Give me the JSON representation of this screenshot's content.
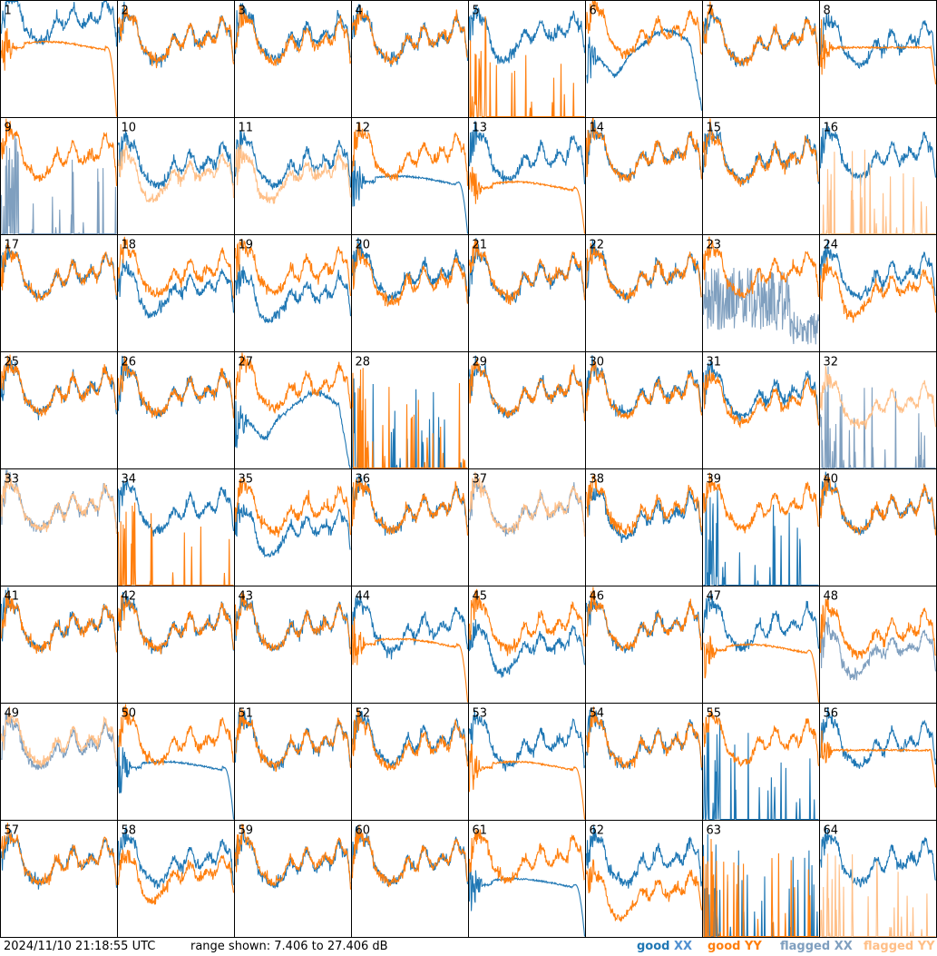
{
  "footer": {
    "timestamp": "2024/11/10 21:18:55 UTC",
    "range": "range shown: 7.406 to 27.406 dB",
    "legend_good_xx_word": "good",
    "legend_good_xx_pol": "XX",
    "legend_good_yy_word": "good",
    "legend_good_yy_pol": "YY",
    "legend_flagged_xx_word": "flagged",
    "legend_flagged_xx_pol": "XX",
    "legend_flagged_yy_word": "flagged",
    "legend_flagged_yy_pol": "YY"
  },
  "colors": {
    "good_xx": "#1f77b4",
    "good_yy": "#ff7f0e",
    "flagged_xx": "#7f9fbf",
    "flagged_yy": "#ffbf87",
    "frame": "#000000"
  },
  "chart_data": {
    "type": "line",
    "layout": "small-multiples 8x8",
    "range_db": [
      7.406,
      27.406
    ],
    "legend": [
      "good XX",
      "good YY",
      "flagged XX",
      "flagged YY"
    ],
    "legend_placement": "bottom-right",
    "panels": [
      {
        "id": "1",
        "xx": "good",
        "yy": "good",
        "xx_shape": "normal",
        "yy_shape": "flat_drop",
        "level_xx": 0.78,
        "level_yy": 0.6
      },
      {
        "id": "2",
        "xx": "good",
        "yy": "good",
        "xx_shape": "normal",
        "yy_shape": "normal",
        "level_xx": 0.62,
        "level_yy": 0.62
      },
      {
        "id": "3",
        "xx": "good",
        "yy": "good",
        "xx_shape": "normal",
        "yy_shape": "normal",
        "level_xx": 0.64,
        "level_yy": 0.6
      },
      {
        "id": "4",
        "xx": "good",
        "yy": "good",
        "xx_shape": "normal",
        "yy_shape": "normal",
        "level_xx": 0.62,
        "level_yy": 0.62
      },
      {
        "id": "5",
        "xx": "good",
        "yy": "good",
        "xx_shape": "dip",
        "yy_shape": "spikes_low",
        "level_xx": 0.68,
        "level_yy": 0.0
      },
      {
        "id": "6",
        "xx": "good",
        "yy": "good",
        "xx_shape": "bigdip",
        "yy_shape": "normal",
        "level_xx": 0.5,
        "level_yy": 0.68
      },
      {
        "id": "7",
        "xx": "good",
        "yy": "good",
        "xx_shape": "normal",
        "yy_shape": "normal",
        "level_xx": 0.6,
        "level_yy": 0.6
      },
      {
        "id": "8",
        "xx": "good",
        "yy": "good",
        "xx_shape": "normal",
        "yy_shape": "flat",
        "level_xx": 0.58,
        "level_yy": 0.6
      },
      {
        "id": "9",
        "xx": "flagged",
        "yy": "good",
        "xx_shape": "spikes_low",
        "yy_shape": "normal",
        "level_xx": 0.0,
        "level_yy": 0.62
      },
      {
        "id": "10",
        "xx": "good",
        "yy": "flagged",
        "xx_shape": "normal",
        "yy_shape": "dip",
        "level_xx": 0.55,
        "level_yy": 0.48
      },
      {
        "id": "11",
        "xx": "good",
        "yy": "flagged",
        "xx_shape": "normal",
        "yy_shape": "dip",
        "level_xx": 0.55,
        "level_yy": 0.48
      },
      {
        "id": "12",
        "xx": "good",
        "yy": "good",
        "xx_shape": "flat_drop",
        "yy_shape": "normal",
        "level_xx": 0.45,
        "level_yy": 0.62
      },
      {
        "id": "13",
        "xx": "good",
        "yy": "good",
        "xx_shape": "normal",
        "yy_shape": "flat_drop",
        "level_xx": 0.6,
        "level_yy": 0.4
      },
      {
        "id": "14",
        "xx": "good",
        "yy": "good",
        "xx_shape": "normal",
        "yy_shape": "normal",
        "level_xx": 0.62,
        "level_yy": 0.62
      },
      {
        "id": "15",
        "xx": "good",
        "yy": "good",
        "xx_shape": "normal",
        "yy_shape": "normal",
        "level_xx": 0.6,
        "level_yy": 0.58
      },
      {
        "id": "16",
        "xx": "good",
        "yy": "flagged",
        "xx_shape": "normal",
        "yy_shape": "spikes_low",
        "level_xx": 0.62,
        "level_yy": 0.0
      },
      {
        "id": "17",
        "xx": "good",
        "yy": "good",
        "xx_shape": "normal",
        "yy_shape": "normal",
        "level_xx": 0.6,
        "level_yy": 0.6
      },
      {
        "id": "18",
        "xx": "good",
        "yy": "good",
        "xx_shape": "dip",
        "yy_shape": "normal",
        "level_xx": 0.5,
        "level_yy": 0.62
      },
      {
        "id": "19",
        "xx": "good",
        "yy": "good",
        "xx_shape": "dip",
        "yy_shape": "normal",
        "level_xx": 0.45,
        "level_yy": 0.64
      },
      {
        "id": "20",
        "xx": "good",
        "yy": "good",
        "xx_shape": "normal",
        "yy_shape": "normal",
        "level_xx": 0.6,
        "level_yy": 0.55
      },
      {
        "id": "21",
        "xx": "good",
        "yy": "good",
        "xx_shape": "normal",
        "yy_shape": "normal",
        "level_xx": 0.58,
        "level_yy": 0.6
      },
      {
        "id": "22",
        "xx": "good",
        "yy": "good",
        "xx_shape": "normal",
        "yy_shape": "normal",
        "level_xx": 0.6,
        "level_yy": 0.6
      },
      {
        "id": "23",
        "xx": "flagged",
        "yy": "good",
        "xx_shape": "noise_mid",
        "yy_shape": "normal",
        "level_xx": 0.3,
        "level_yy": 0.62
      },
      {
        "id": "24",
        "xx": "good",
        "yy": "good",
        "xx_shape": "normal",
        "yy_shape": "dip",
        "level_xx": 0.6,
        "level_yy": 0.5
      },
      {
        "id": "25",
        "xx": "good",
        "yy": "good",
        "xx_shape": "normal",
        "yy_shape": "normal",
        "level_xx": 0.62,
        "level_yy": 0.62
      },
      {
        "id": "26",
        "xx": "good",
        "yy": "good",
        "xx_shape": "normal",
        "yy_shape": "normal",
        "level_xx": 0.6,
        "level_yy": 0.6
      },
      {
        "id": "27",
        "xx": "good",
        "yy": "good",
        "xx_shape": "bigdip",
        "yy_shape": "normal",
        "level_xx": 0.4,
        "level_yy": 0.65
      },
      {
        "id": "28",
        "xx": "good",
        "yy": "good",
        "xx_shape": "spikes_low",
        "yy_shape": "spikes_low",
        "level_xx": 0.0,
        "level_yy": 0.0
      },
      {
        "id": "29",
        "xx": "good",
        "yy": "good",
        "xx_shape": "normal",
        "yy_shape": "normal",
        "level_xx": 0.6,
        "level_yy": 0.6
      },
      {
        "id": "30",
        "xx": "good",
        "yy": "good",
        "xx_shape": "normal",
        "yy_shape": "normal",
        "level_xx": 0.6,
        "level_yy": 0.58
      },
      {
        "id": "31",
        "xx": "good",
        "yy": "good",
        "xx_shape": "normal",
        "yy_shape": "normal",
        "level_xx": 0.58,
        "level_yy": 0.52
      },
      {
        "id": "32",
        "xx": "flagged",
        "yy": "flagged",
        "xx_shape": "spikes_low",
        "yy_shape": "normal",
        "level_xx": 0.0,
        "level_yy": 0.5
      },
      {
        "id": "33",
        "xx": "flagged",
        "yy": "flagged",
        "xx_shape": "normal",
        "yy_shape": "normal",
        "level_xx": 0.62,
        "level_yy": 0.62
      },
      {
        "id": "34",
        "xx": "good",
        "yy": "good",
        "xx_shape": "normal",
        "yy_shape": "spikes_low",
        "level_xx": 0.6,
        "level_yy": 0.0
      },
      {
        "id": "35",
        "xx": "good",
        "yy": "good",
        "xx_shape": "dip",
        "yy_shape": "normal",
        "level_xx": 0.45,
        "level_yy": 0.6
      },
      {
        "id": "36",
        "xx": "good",
        "yy": "good",
        "xx_shape": "normal",
        "yy_shape": "normal",
        "level_xx": 0.6,
        "level_yy": 0.6
      },
      {
        "id": "37",
        "xx": "flagged",
        "yy": "flagged",
        "xx_shape": "normal",
        "yy_shape": "normal",
        "level_xx": 0.6,
        "level_yy": 0.6
      },
      {
        "id": "38",
        "xx": "good",
        "yy": "good",
        "xx_shape": "normal",
        "yy_shape": "normal",
        "level_xx": 0.55,
        "level_yy": 0.6
      },
      {
        "id": "39",
        "xx": "good",
        "yy": "good",
        "xx_shape": "spikes_low",
        "yy_shape": "normal",
        "level_xx": 0.0,
        "level_yy": 0.62
      },
      {
        "id": "40",
        "xx": "good",
        "yy": "good",
        "xx_shape": "normal",
        "yy_shape": "normal",
        "level_xx": 0.6,
        "level_yy": 0.6
      },
      {
        "id": "41",
        "xx": "good",
        "yy": "good",
        "xx_shape": "normal",
        "yy_shape": "normal",
        "level_xx": 0.6,
        "level_yy": 0.6
      },
      {
        "id": "42",
        "xx": "good",
        "yy": "good",
        "xx_shape": "normal",
        "yy_shape": "normal",
        "level_xx": 0.6,
        "level_yy": 0.6
      },
      {
        "id": "43",
        "xx": "good",
        "yy": "good",
        "xx_shape": "normal",
        "yy_shape": "normal",
        "level_xx": 0.6,
        "level_yy": 0.6
      },
      {
        "id": "44",
        "xx": "good",
        "yy": "good",
        "xx_shape": "normal",
        "yy_shape": "flat_drop",
        "level_xx": 0.58,
        "level_yy": 0.5
      },
      {
        "id": "45",
        "xx": "good",
        "yy": "good",
        "xx_shape": "dip",
        "yy_shape": "normal",
        "level_xx": 0.45,
        "level_yy": 0.6
      },
      {
        "id": "46",
        "xx": "good",
        "yy": "good",
        "xx_shape": "normal",
        "yy_shape": "normal",
        "level_xx": 0.6,
        "level_yy": 0.6
      },
      {
        "id": "47",
        "xx": "good",
        "yy": "good",
        "xx_shape": "normal",
        "yy_shape": "flat_drop",
        "level_xx": 0.6,
        "level_yy": 0.45
      },
      {
        "id": "48",
        "xx": "flagged",
        "yy": "good",
        "xx_shape": "dip",
        "yy_shape": "normal",
        "level_xx": 0.42,
        "level_yy": 0.55
      },
      {
        "id": "49",
        "xx": "flagged",
        "yy": "flagged",
        "xx_shape": "normal",
        "yy_shape": "normal",
        "level_xx": 0.58,
        "level_yy": 0.62
      },
      {
        "id": "50",
        "xx": "good",
        "yy": "good",
        "xx_shape": "flat_drop",
        "yy_shape": "normal",
        "level_xx": 0.45,
        "level_yy": 0.62
      },
      {
        "id": "51",
        "xx": "good",
        "yy": "good",
        "xx_shape": "normal",
        "yy_shape": "normal",
        "level_xx": 0.6,
        "level_yy": 0.6
      },
      {
        "id": "52",
        "xx": "good",
        "yy": "good",
        "xx_shape": "normal",
        "yy_shape": "normal",
        "level_xx": 0.62,
        "level_yy": 0.58
      },
      {
        "id": "53",
        "xx": "good",
        "yy": "good",
        "xx_shape": "normal",
        "yy_shape": "flat_drop",
        "level_xx": 0.6,
        "level_yy": 0.45
      },
      {
        "id": "54",
        "xx": "good",
        "yy": "good",
        "xx_shape": "normal",
        "yy_shape": "normal",
        "level_xx": 0.6,
        "level_yy": 0.6
      },
      {
        "id": "55",
        "xx": "good",
        "yy": "good",
        "xx_shape": "spikes_low",
        "yy_shape": "normal",
        "level_xx": 0.0,
        "level_yy": 0.62
      },
      {
        "id": "56",
        "xx": "good",
        "yy": "good",
        "xx_shape": "normal",
        "yy_shape": "flat",
        "level_xx": 0.6,
        "level_yy": 0.6
      },
      {
        "id": "57",
        "xx": "good",
        "yy": "good",
        "xx_shape": "normal",
        "yy_shape": "normal",
        "level_xx": 0.6,
        "level_yy": 0.6
      },
      {
        "id": "58",
        "xx": "good",
        "yy": "good",
        "xx_shape": "normal",
        "yy_shape": "dip",
        "level_xx": 0.6,
        "level_yy": 0.5
      },
      {
        "id": "59",
        "xx": "good",
        "yy": "good",
        "xx_shape": "normal",
        "yy_shape": "normal",
        "level_xx": 0.58,
        "level_yy": 0.6
      },
      {
        "id": "60",
        "xx": "good",
        "yy": "good",
        "xx_shape": "normal",
        "yy_shape": "normal",
        "level_xx": 0.6,
        "level_yy": 0.6
      },
      {
        "id": "61",
        "xx": "good",
        "yy": "good",
        "xx_shape": "flat_drop",
        "yy_shape": "normal",
        "level_xx": 0.45,
        "level_yy": 0.62
      },
      {
        "id": "62",
        "xx": "good",
        "yy": "good",
        "xx_shape": "normal",
        "yy_shape": "dip",
        "level_xx": 0.6,
        "level_yy": 0.35
      },
      {
        "id": "63",
        "xx": "good",
        "yy": "good",
        "xx_shape": "spikes_low",
        "yy_shape": "spikes_low",
        "level_xx": 0.0,
        "level_yy": 0.0
      },
      {
        "id": "64",
        "xx": "good",
        "yy": "flagged",
        "xx_shape": "normal",
        "yy_shape": "spikes_low",
        "level_xx": 0.6,
        "level_yy": 0.0
      }
    ]
  }
}
